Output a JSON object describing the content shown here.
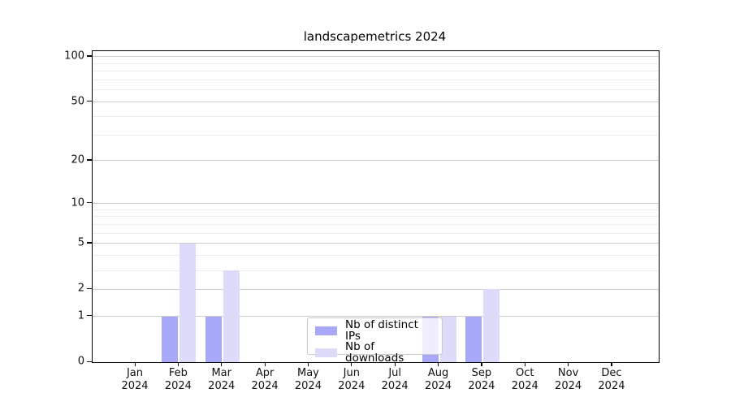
{
  "chart_data": {
    "type": "bar",
    "title": "landscapemetrics 2024",
    "year": "2024",
    "categories": [
      "Jan",
      "Feb",
      "Mar",
      "Apr",
      "May",
      "Jun",
      "Jul",
      "Aug",
      "Sep",
      "Oct",
      "Nov",
      "Dec"
    ],
    "series": [
      {
        "name": "Nb of distinct IPs",
        "color": "#a8a8f8",
        "values": [
          0,
          1,
          1,
          0,
          0,
          0,
          0,
          1,
          1,
          0,
          0,
          0
        ]
      },
      {
        "name": "Nb of downloads",
        "color": "#dcdcfa",
        "values": [
          0,
          5,
          3,
          0,
          0,
          0,
          0,
          1,
          2,
          0,
          0,
          0
        ]
      }
    ],
    "scale": "log1p",
    "ylim": [
      0,
      112
    ],
    "yticks": [
      0,
      1,
      2,
      5,
      10,
      20,
      50,
      100
    ],
    "ytick_labels": [
      "0",
      "1",
      "2",
      "5",
      "10",
      "20",
      "50",
      "100"
    ],
    "minor_yticks": [
      3,
      4,
      6,
      7,
      8,
      9,
      30,
      40,
      60,
      70,
      80,
      90
    ],
    "grid": true,
    "legend_position": "lower-center"
  },
  "colors": {
    "background": "#ffffff",
    "axis": "#000000",
    "text": "#111111",
    "grid_major": "#cccccc",
    "grid_minor": "#ededed",
    "legend_border": "#c9c9c9",
    "legend_background": "rgba(255,255,255,0.8)"
  }
}
